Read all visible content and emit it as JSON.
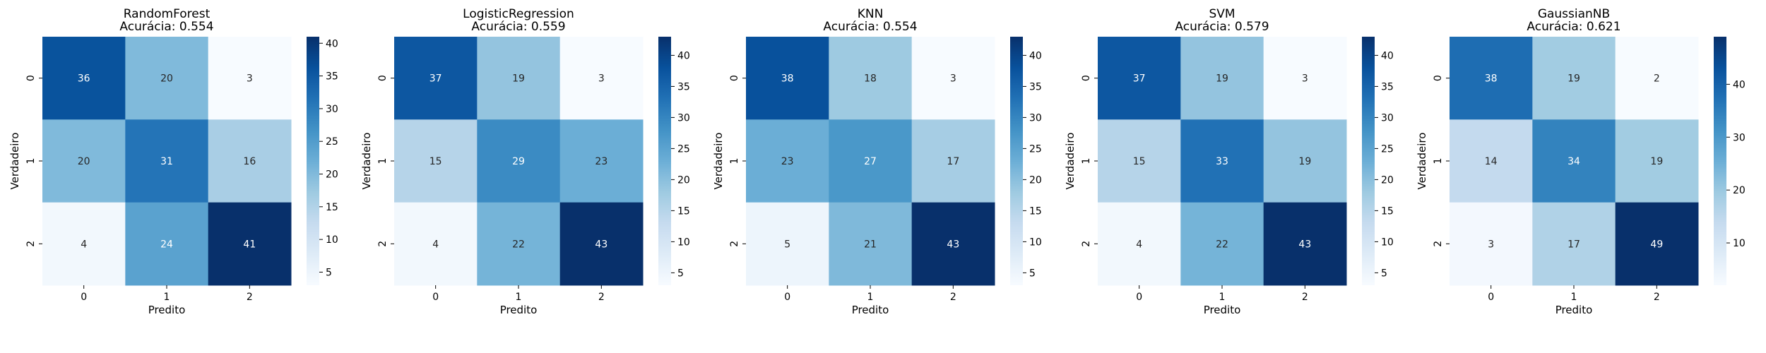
{
  "figure": {
    "background": "#ffffff"
  },
  "chart_data": [
    {
      "type": "heatmap",
      "title": "RandomForest",
      "subtitle": "Acurácia: 0.554",
      "xlabel": "Predito",
      "ylabel": "Verdadeiro",
      "x_categories": [
        "0",
        "1",
        "2"
      ],
      "y_categories": [
        "0",
        "1",
        "2"
      ],
      "values": [
        [
          36,
          20,
          3
        ],
        [
          20,
          31,
          16
        ],
        [
          4,
          24,
          41
        ]
      ],
      "colorbar": {
        "min": 3,
        "max": 41,
        "ticks": [
          "5",
          "10",
          "15",
          "20",
          "25",
          "30",
          "35",
          "40"
        ]
      },
      "colormap": "Blues"
    },
    {
      "type": "heatmap",
      "title": "LogisticRegression",
      "subtitle": "Acurácia: 0.559",
      "xlabel": "Predito",
      "ylabel": "Verdadeiro",
      "x_categories": [
        "0",
        "1",
        "2"
      ],
      "y_categories": [
        "0",
        "1",
        "2"
      ],
      "values": [
        [
          37,
          19,
          3
        ],
        [
          15,
          29,
          23
        ],
        [
          4,
          22,
          43
        ]
      ],
      "colorbar": {
        "min": 3,
        "max": 43,
        "ticks": [
          "5",
          "10",
          "15",
          "20",
          "25",
          "30",
          "35",
          "40"
        ]
      },
      "colormap": "Blues"
    },
    {
      "type": "heatmap",
      "title": "KNN",
      "subtitle": "Acurácia: 0.554",
      "xlabel": "Predito",
      "ylabel": "Verdadeiro",
      "x_categories": [
        "0",
        "1",
        "2"
      ],
      "y_categories": [
        "0",
        "1",
        "2"
      ],
      "values": [
        [
          38,
          18,
          3
        ],
        [
          23,
          27,
          17
        ],
        [
          5,
          21,
          43
        ]
      ],
      "colorbar": {
        "min": 3,
        "max": 43,
        "ticks": [
          "5",
          "10",
          "15",
          "20",
          "25",
          "30",
          "35",
          "40"
        ]
      },
      "colormap": "Blues"
    },
    {
      "type": "heatmap",
      "title": "SVM",
      "subtitle": "Acurácia: 0.579",
      "xlabel": "Predito",
      "ylabel": "Verdadeiro",
      "x_categories": [
        "0",
        "1",
        "2"
      ],
      "y_categories": [
        "0",
        "1",
        "2"
      ],
      "values": [
        [
          37,
          19,
          3
        ],
        [
          15,
          33,
          19
        ],
        [
          4,
          22,
          43
        ]
      ],
      "colorbar": {
        "min": 3,
        "max": 43,
        "ticks": [
          "5",
          "10",
          "15",
          "20",
          "25",
          "30",
          "35",
          "40"
        ]
      },
      "colormap": "Blues"
    },
    {
      "type": "heatmap",
      "title": "GaussianNB",
      "subtitle": "Acurácia: 0.621",
      "xlabel": "Predito",
      "ylabel": "Verdadeiro",
      "x_categories": [
        "0",
        "1",
        "2"
      ],
      "y_categories": [
        "0",
        "1",
        "2"
      ],
      "values": [
        [
          38,
          19,
          2
        ],
        [
          14,
          34,
          19
        ],
        [
          3,
          17,
          49
        ]
      ],
      "colorbar": {
        "min": 2,
        "max": 49,
        "ticks": [
          "10",
          "20",
          "30",
          "40"
        ]
      },
      "colormap": "Blues"
    }
  ]
}
